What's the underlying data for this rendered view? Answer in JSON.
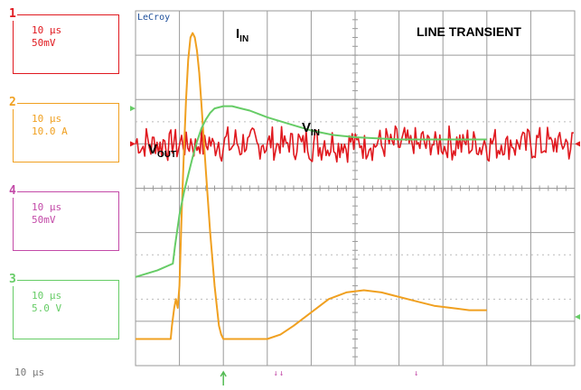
{
  "scope_brand": "LeCroy",
  "title": "LINE TRANSIENT",
  "channels": [
    {
      "num": "1",
      "timebase": "10 µs",
      "scale": "50mV",
      "color": "#e0191f"
    },
    {
      "num": "2",
      "timebase": "10 µs",
      "scale": "10.0 A",
      "color": "#f0a020"
    },
    {
      "num": "4",
      "timebase": "10 µs",
      "scale": "50mV",
      "color": "#c34aa8"
    },
    {
      "num": "3",
      "timebase": "10 µs",
      "scale": "5.0 V",
      "color": "#66cc66"
    }
  ],
  "timebase_readout": "10 µs",
  "grid_color": "#9a9a9a",
  "chart_data": {
    "type": "line",
    "title": "LINE TRANSIENT",
    "x_unit": "µs",
    "xlim": [
      0,
      100
    ],
    "grid": true,
    "divisions": {
      "x": 10,
      "y": 8
    },
    "series": [
      {
        "name": "VOUT",
        "label_main": "V",
        "label_sub": "OUT",
        "channel": "1",
        "color": "#e0191f",
        "mean_div": 5.0,
        "ripple_div": 0.35,
        "noise": true
      },
      {
        "name": "IIN",
        "label_main": "I",
        "label_sub": "IN",
        "channel": "2",
        "color": "#f0a020",
        "x": [
          0,
          8,
          8.3,
          8.8,
          9.2,
          9.6,
          10,
          10.5,
          11,
          11.5,
          12,
          12.5,
          13,
          13.5,
          14,
          14.5,
          15,
          16,
          17,
          18,
          19,
          19.5,
          20,
          30,
          33,
          36,
          40,
          44,
          48,
          52,
          56,
          60,
          64,
          68,
          72,
          76,
          80
        ],
        "y_div": [
          0.6,
          0.6,
          0.9,
          1.3,
          1.5,
          1.3,
          1.8,
          3.4,
          4.8,
          6.0,
          6.9,
          7.4,
          7.5,
          7.4,
          7.1,
          6.6,
          5.9,
          4.4,
          3.0,
          1.8,
          0.9,
          0.7,
          0.6,
          0.6,
          0.7,
          0.9,
          1.2,
          1.5,
          1.65,
          1.7,
          1.65,
          1.55,
          1.45,
          1.35,
          1.3,
          1.25,
          1.25
        ]
      },
      {
        "name": "VIN",
        "label_main": "V",
        "label_sub": "IN",
        "channel": "3",
        "color": "#66cc66",
        "x": [
          0,
          5,
          8.5,
          9,
          10,
          11,
          12,
          13,
          14,
          15,
          16,
          17,
          18,
          20,
          22,
          24,
          26,
          30,
          35,
          40,
          45,
          50,
          60,
          70,
          80
        ],
        "y_div": [
          2.0,
          2.15,
          2.3,
          2.7,
          3.4,
          3.9,
          4.3,
          4.7,
          5.05,
          5.35,
          5.55,
          5.7,
          5.8,
          5.85,
          5.85,
          5.8,
          5.75,
          5.6,
          5.45,
          5.3,
          5.2,
          5.15,
          5.1,
          5.1,
          5.1
        ]
      }
    ]
  }
}
